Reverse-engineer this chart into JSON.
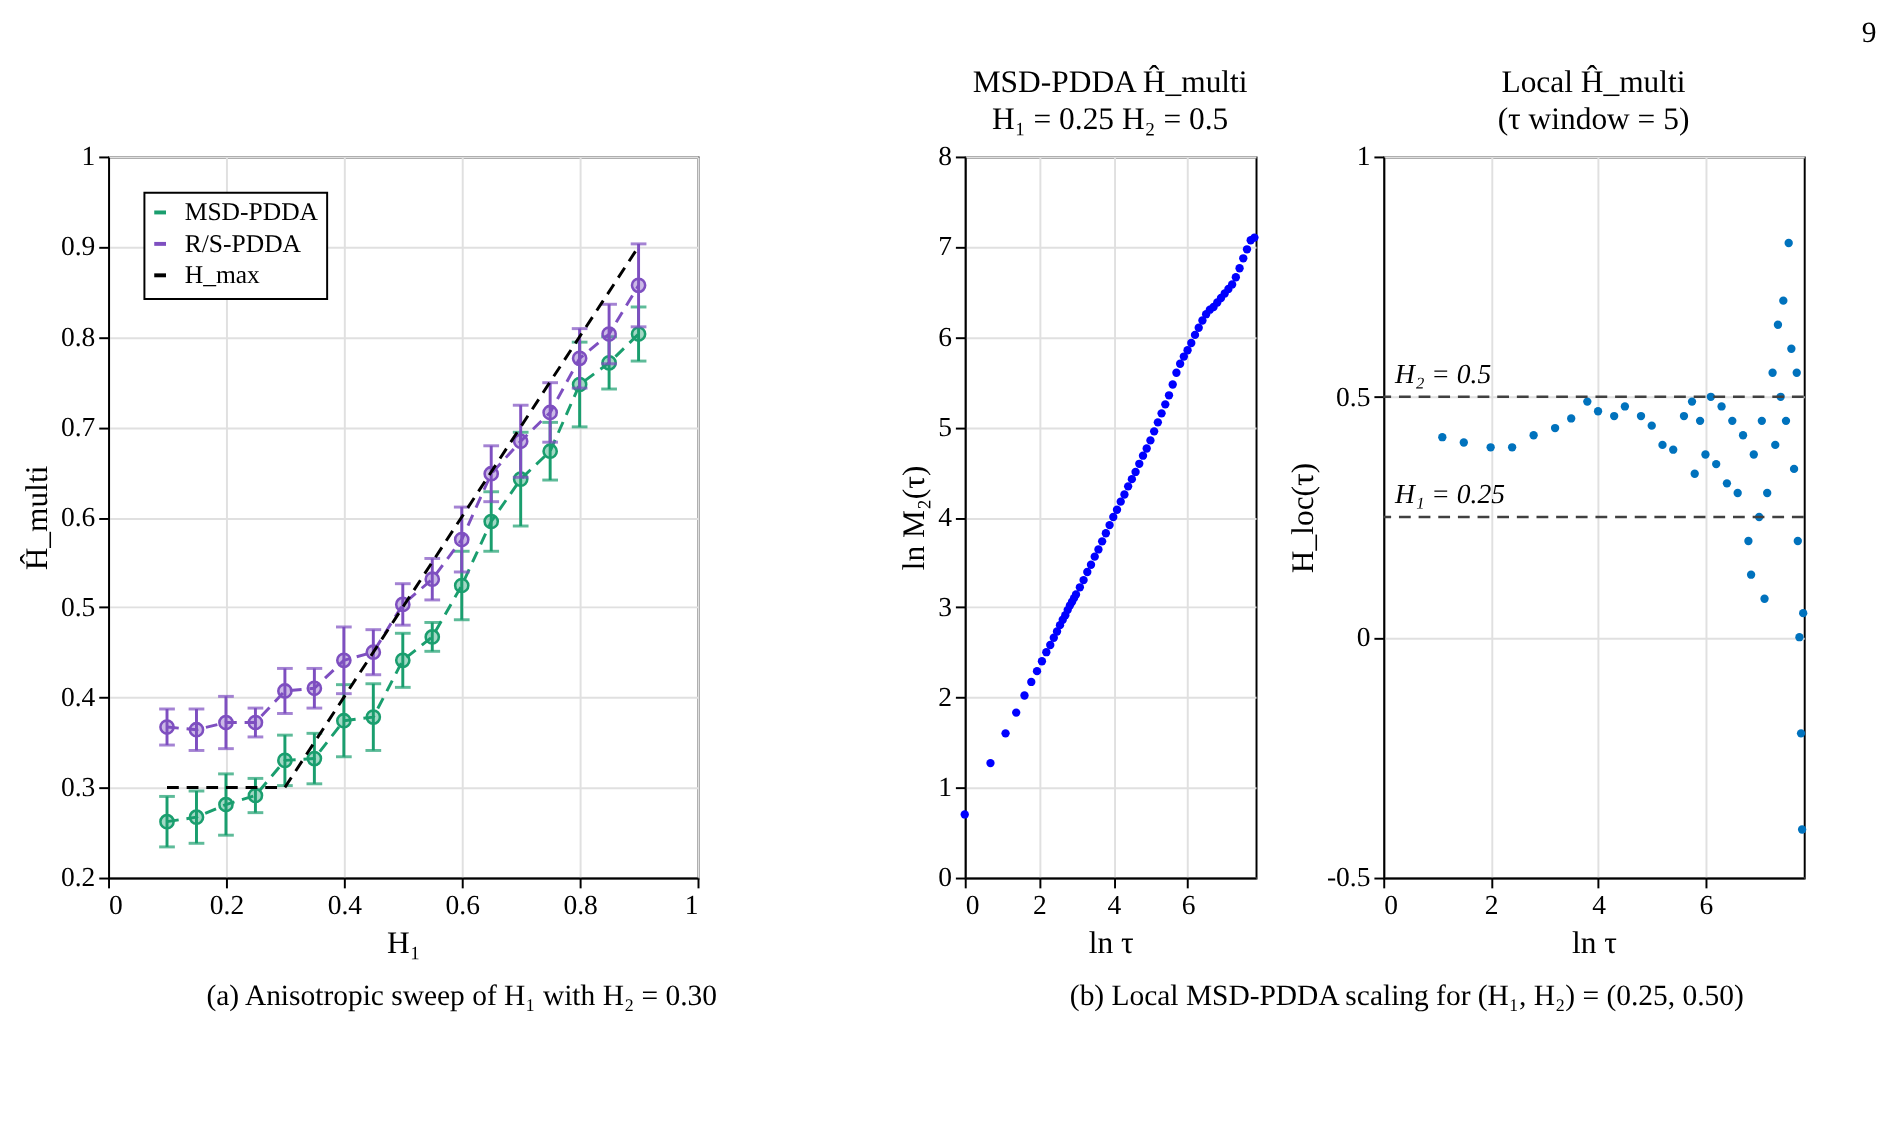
{
  "chart_data": [
    {
      "type": "line",
      "xlabel": "H₁",
      "ylabel": "Ĥ_multi",
      "xlim": [
        0,
        1
      ],
      "xticks": [
        0,
        0.2,
        0.4,
        0.6,
        0.8,
        1
      ],
      "ylim": [
        0.2,
        1
      ],
      "yticks": [
        0.2,
        0.3,
        0.4,
        0.5,
        0.6,
        0.7,
        0.8,
        0.9,
        1
      ],
      "grid": true,
      "legend": "top left",
      "marker": "circle",
      "line_style": "dashed",
      "annotations": [
        "(a) Anisotropic sweep of H₁ with H₂ = 0.30"
      ],
      "series": [
        {
          "name": "MSD-PDDA",
          "color": "#1a9e6e",
          "x": [
            0.1,
            0.15,
            0.2,
            0.25,
            0.3,
            0.35,
            0.4,
            0.45,
            0.5,
            0.55,
            0.6,
            0.65,
            0.7,
            0.75,
            0.8,
            0.85,
            0.9
          ],
          "values": [
            0.262,
            0.267,
            0.281,
            0.291,
            0.33,
            0.332,
            0.374,
            0.378,
            0.441,
            0.467,
            0.524,
            0.595,
            0.642,
            0.673,
            0.747,
            0.771,
            0.803
          ],
          "errors": [
            0.028,
            0.029,
            0.034,
            0.019,
            0.028,
            0.028,
            0.04,
            0.037,
            0.03,
            0.016,
            0.038,
            0.033,
            0.052,
            0.032,
            0.047,
            0.029,
            0.03
          ]
        },
        {
          "name": "R/S-PDDA",
          "color": "#7e4fc0",
          "x": [
            0.1,
            0.15,
            0.2,
            0.25,
            0.3,
            0.35,
            0.4,
            0.45,
            0.5,
            0.55,
            0.6,
            0.65,
            0.7,
            0.75,
            0.8,
            0.85,
            0.9
          ],
          "values": [
            0.367,
            0.364,
            0.372,
            0.372,
            0.407,
            0.41,
            0.441,
            0.45,
            0.503,
            0.531,
            0.575,
            0.648,
            0.684,
            0.716,
            0.776,
            0.803,
            0.857
          ],
          "errors": [
            0.02,
            0.023,
            0.029,
            0.016,
            0.025,
            0.022,
            0.037,
            0.025,
            0.023,
            0.023,
            0.036,
            0.031,
            0.04,
            0.033,
            0.033,
            0.033,
            0.046
          ]
        },
        {
          "name": "H_max",
          "color": "#000000",
          "marker": "none",
          "x": [
            0.1,
            0.3,
            0.9
          ],
          "values": [
            0.3,
            0.3,
            0.9
          ]
        }
      ]
    },
    {
      "type": "scatter",
      "title": "MSD-PDDA Ĥ_multi",
      "subtitle": "H₁ = 0.25 H₂ = 0.5",
      "xlabel": "ln τ",
      "ylabel": "ln M₂(τ)",
      "xlim": [
        0,
        7.83
      ],
      "xticks": [
        0,
        2,
        4,
        6
      ],
      "ylim": [
        0,
        8
      ],
      "yticks": [
        0,
        1,
        2,
        3,
        4,
        5,
        6,
        7,
        8
      ],
      "grid": true,
      "marker": "circle",
      "annotations": [
        "(b) Local MSD-PDDA scaling for (H₁, H₂) = (0.25, 0.50)"
      ],
      "series": [
        {
          "color": "#0000ff",
          "x": [
            0,
            0.693,
            1.099,
            1.386,
            1.609,
            1.792,
            1.946,
            2.079,
            2.197,
            2.303,
            2.398,
            2.485,
            2.565,
            2.639,
            2.708,
            2.773,
            2.833,
            2.89,
            2.944,
            2.996,
            3.1,
            3.2,
            3.3,
            3.4,
            3.5,
            3.6,
            3.7,
            3.8,
            3.9,
            4.0,
            4.1,
            4.2,
            4.3,
            4.4,
            4.5,
            4.6,
            4.7,
            4.8,
            4.9,
            5.0,
            5.1,
            5.2,
            5.3,
            5.4,
            5.5,
            5.6,
            5.7,
            5.8,
            5.9,
            6.0,
            6.1,
            6.2,
            6.3,
            6.4,
            6.5,
            6.6,
            6.7,
            6.8,
            6.9,
            7.0,
            7.1,
            7.2,
            7.3,
            7.4,
            7.5,
            7.6,
            7.7,
            7.8
          ],
          "values": [
            0.7,
            1.27,
            1.6,
            1.83,
            2.02,
            2.17,
            2.29,
            2.4,
            2.5,
            2.58,
            2.66,
            2.73,
            2.8,
            2.86,
            2.91,
            2.97,
            3.02,
            3.06,
            3.1,
            3.14,
            3.22,
            3.3,
            3.39,
            3.47,
            3.56,
            3.64,
            3.73,
            3.82,
            3.91,
            4.0,
            4.08,
            4.17,
            4.25,
            4.34,
            4.42,
            4.5,
            4.59,
            4.68,
            4.76,
            4.85,
            4.95,
            5.05,
            5.15,
            5.25,
            5.35,
            5.47,
            5.6,
            5.7,
            5.78,
            5.85,
            5.93,
            6.02,
            6.1,
            6.18,
            6.25,
            6.3,
            6.33,
            6.38,
            6.43,
            6.48,
            6.53,
            6.58,
            6.66,
            6.76,
            6.87,
            6.97,
            7.07,
            7.1
          ]
        }
      ]
    },
    {
      "type": "scatter",
      "title": "Local Ĥ_multi",
      "subtitle": "(τ window = 5)",
      "xlabel": "ln τ",
      "ylabel": "H_loc(τ)",
      "xlim": [
        0,
        7.83
      ],
      "xticks": [
        0,
        2,
        4,
        6
      ],
      "ylim": [
        -0.5,
        1
      ],
      "yticks": [
        {
          "value": -0.5,
          "label": "-0.5"
        },
        0,
        0.5,
        1
      ],
      "grid": true,
      "marker": "circle",
      "annotations": [
        "9"
      ],
      "ref_lines": [
        {
          "axis": "y",
          "value": 0.5,
          "label": "H₂ = 0.5",
          "color": "#404040",
          "line_style": "dashed"
        },
        {
          "axis": "y",
          "value": 0.25,
          "label": "H₁ = 0.25",
          "color": "#404040",
          "line_style": "dashed"
        }
      ],
      "series": [
        {
          "color": "#0072bd",
          "x": [
            1.1,
            1.5,
            2.0,
            2.4,
            2.8,
            3.2,
            3.5,
            3.8,
            4.0,
            4.3,
            4.5,
            4.8,
            5.0,
            5.2,
            5.4,
            5.6,
            5.75,
            5.8,
            5.9,
            6.0,
            6.1,
            6.2,
            6.3,
            6.4,
            6.5,
            6.6,
            6.7,
            6.8,
            6.85,
            6.9,
            7.0,
            7.05,
            7.1,
            7.15,
            7.25,
            7.3,
            7.35,
            7.4,
            7.45,
            7.5,
            7.55,
            7.6,
            7.65,
            7.7,
            7.72,
            7.75,
            7.78,
            7.8,
            7.82
          ],
          "values": [
            0.416,
            0.405,
            0.395,
            0.395,
            0.42,
            0.435,
            0.455,
            0.49,
            0.47,
            0.46,
            0.48,
            0.46,
            0.44,
            0.4,
            0.39,
            0.46,
            0.49,
            0.34,
            0.45,
            0.38,
            0.5,
            0.36,
            0.48,
            0.32,
            0.45,
            0.3,
            0.42,
            0.2,
            0.13,
            0.38,
            0.25,
            0.45,
            0.08,
            0.3,
            0.55,
            0.4,
            0.65,
            0.5,
            0.7,
            0.45,
            0.82,
            0.6,
            0.35,
            0.55,
            0.2,
            0.0,
            -0.2,
            -0.4,
            0.05
          ]
        }
      ]
    }
  ]
}
